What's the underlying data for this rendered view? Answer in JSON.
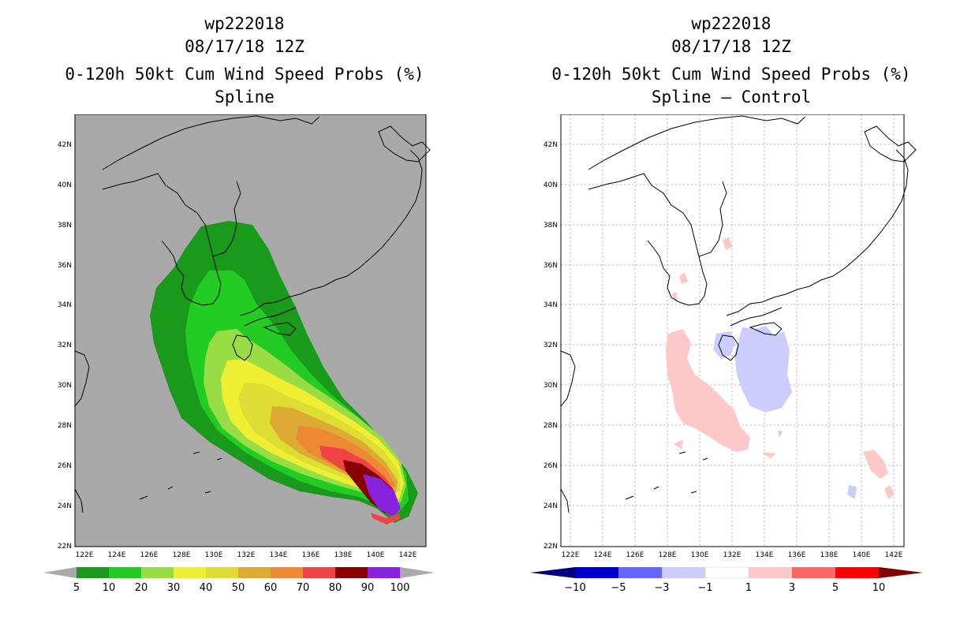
{
  "left_panel": {
    "storm_id": "wp222018",
    "datetime": "08/17/18 12Z",
    "title": "0-120h 50kt Cum Wind Speed Probs (%)",
    "subtitle": "Spline",
    "colorbar": {
      "labels": [
        "5",
        "10",
        "20",
        "30",
        "40",
        "50",
        "60",
        "70",
        "80",
        "90",
        "100"
      ],
      "colors": [
        "#1a9a1a",
        "#22cc22",
        "#99dd44",
        "#eeee33",
        "#dddd33",
        "#ddaa33",
        "#ee8833",
        "#ee4444",
        "#880000",
        "#8822dd"
      ]
    }
  },
  "right_panel": {
    "storm_id": "wp222018",
    "datetime": "08/17/18 12Z",
    "title": "0-120h 50kt Cum Wind Speed Probs (%)",
    "subtitle": "Spline – Control",
    "colorbar": {
      "labels": [
        "−10",
        "−5",
        "−3",
        "−1",
        "1",
        "3",
        "5",
        "10"
      ],
      "colors": [
        "#0000cc",
        "#6666ff",
        "#ccccff",
        "#ffffff",
        "#ffc8c8",
        "#ff6666",
        "#ff0000"
      ]
    }
  },
  "axes": {
    "lat_labels": [
      "42N",
      "40N",
      "38N",
      "36N",
      "34N",
      "32N",
      "30N",
      "28N",
      "26N",
      "24N",
      "22N"
    ],
    "lon_labels": [
      "122E",
      "124E",
      "126E",
      "128E",
      "130E",
      "132E",
      "134E",
      "136E",
      "138E",
      "140E",
      "142E"
    ]
  },
  "colors": {
    "land_sea_gray": "#a9a9a9",
    "grid": "#b0b0b0"
  }
}
